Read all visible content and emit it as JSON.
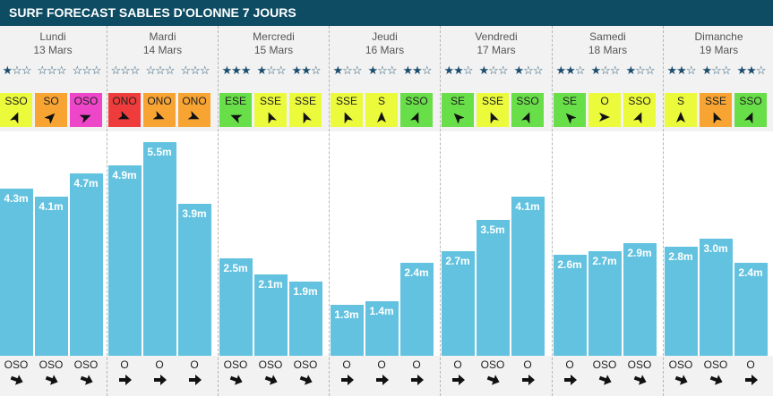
{
  "title": "SURF FORECAST SABLES D'OLONNE 7 JOURS",
  "colors": {
    "title_bg": "#0d4c63",
    "bar": "#62c2df",
    "wind_yellow": "#ecfa3c",
    "wind_orange": "#f7a433",
    "wind_magenta": "#ee46c8",
    "wind_red": "#ee3b3b",
    "wind_green": "#68de48",
    "star": "#1a4d6e"
  },
  "days": [
    {
      "name": "Lundi",
      "date": "13 Mars"
    },
    {
      "name": "Mardi",
      "date": "14 Mars"
    },
    {
      "name": "Mercredi",
      "date": "15 Mars"
    },
    {
      "name": "Jeudi",
      "date": "16 Mars"
    },
    {
      "name": "Vendredi",
      "date": "17 Mars"
    },
    {
      "name": "Samedi",
      "date": "18 Mars"
    },
    {
      "name": "Dimanche",
      "date": "19 Mars"
    }
  ],
  "chart_data": {
    "type": "bar",
    "title": "SURF FORECAST SABLES D'OLONNE 7 JOURS",
    "unit": "m",
    "ylim": [
      0,
      6
    ],
    "slots_per_day": 3,
    "values": [
      4.3,
      4.1,
      4.7,
      4.9,
      5.5,
      3.9,
      2.5,
      2.1,
      1.9,
      1.3,
      1.4,
      2.4,
      2.7,
      3.5,
      4.1,
      2.6,
      2.7,
      2.9,
      2.8,
      3.0,
      2.4
    ],
    "labels": [
      "4.3m",
      "4.1m",
      "4.7m",
      "4.9m",
      "5.5m",
      "3.9m",
      "2.5m",
      "2.1m",
      "1.9m",
      "1.3m",
      "1.4m",
      "2.4m",
      "2.7m",
      "3.5m",
      "4.1m",
      "2.6m",
      "2.7m",
      "2.9m",
      "2.8m",
      "3.0m",
      "2.4m"
    ],
    "stars": [
      1,
      0,
      0,
      0,
      0,
      0,
      3,
      1,
      2,
      1,
      1,
      2,
      2,
      1,
      1,
      2,
      1,
      1,
      2,
      1,
      2
    ],
    "wind_directions": [
      "SSO",
      "SO",
      "OSO",
      "ONO",
      "ONO",
      "ONO",
      "ESE",
      "SSE",
      "SSE",
      "SSE",
      "S",
      "SSO",
      "SE",
      "SSE",
      "SSO",
      "SE",
      "O",
      "SSO",
      "S",
      "SSE",
      "SSO"
    ],
    "wind_colors": [
      "yellow",
      "orange",
      "magenta",
      "red",
      "orange",
      "orange",
      "green",
      "yellow",
      "yellow",
      "yellow",
      "yellow",
      "green",
      "green",
      "yellow",
      "green",
      "green",
      "yellow",
      "yellow",
      "yellow",
      "orange",
      "green"
    ],
    "swell_directions": [
      "OSO",
      "OSO",
      "OSO",
      "O",
      "O",
      "O",
      "OSO",
      "OSO",
      "OSO",
      "O",
      "O",
      "O",
      "O",
      "OSO",
      "O",
      "O",
      "OSO",
      "OSO",
      "OSO",
      "OSO",
      "O"
    ]
  }
}
